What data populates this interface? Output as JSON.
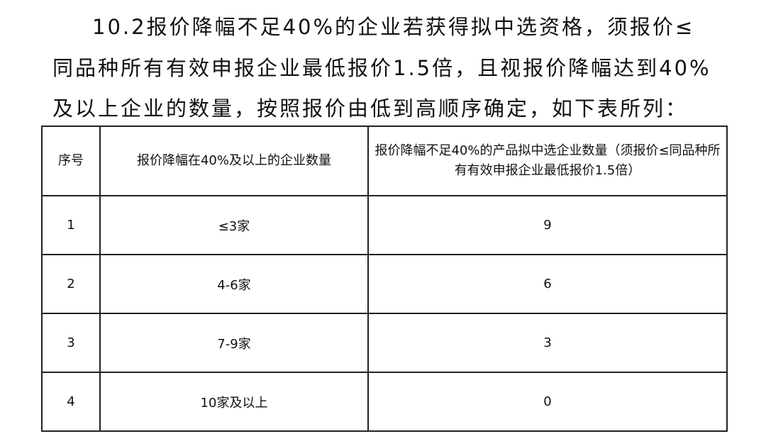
{
  "paragraph": [
    "10.2报价降幅不足40%的企业若获得拟中选资格，须报价≤",
    "同品种所有有效申报企业最低报价1.5倍，且视报价降幅达到40%",
    "及以上企业的数量，按照报价由低到高顺序确定，如下表所列："
  ],
  "table": {
    "headers": [
      "序号",
      "报价降幅在40%及以上的企业数量",
      "报价降幅不足40%的产品拟中选企业数量（须报价≤同品种所有有效申报企业最低报价1.5倍）"
    ],
    "rows": [
      [
        "1",
        "≤3家",
        "9"
      ],
      [
        "2",
        "4-6家",
        "6"
      ],
      [
        "3",
        "7-9家",
        "3"
      ],
      [
        "4",
        "10家及以上",
        "0"
      ]
    ]
  }
}
